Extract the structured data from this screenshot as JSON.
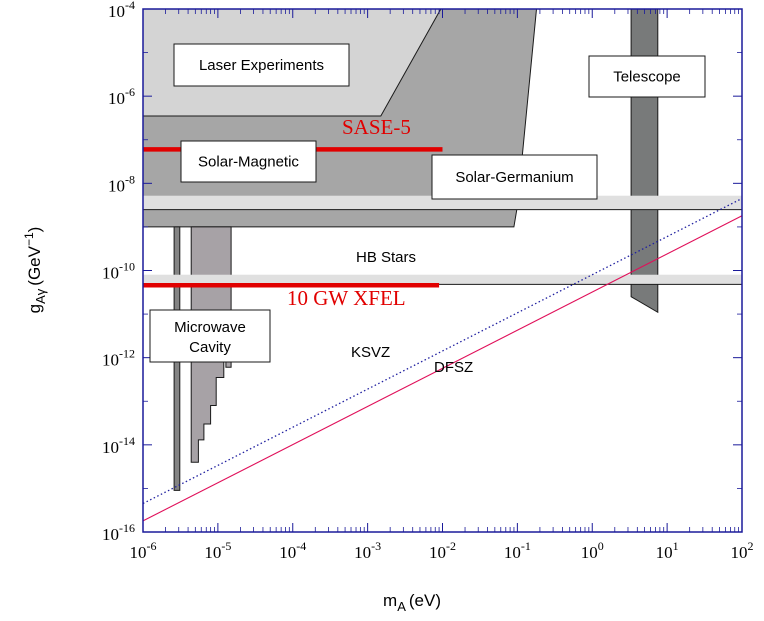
{
  "chart_data": {
    "type": "exclusion-plot",
    "xlabel": "m",
    "xlabel_sub": "A",
    "xlabel_unit": "(eV)",
    "ylabel": "g",
    "ylabel_sub": "Aγ",
    "ylabel_unit": "(GeV",
    "ylabel_unit_exp": "−1",
    "ylabel_unit_close": ")",
    "x_scale": "log",
    "y_scale": "log",
    "xlim": [
      1e-06,
      100
    ],
    "ylim": [
      1e-16,
      0.0001
    ],
    "x_ticks": [
      {
        "value": 1e-06,
        "base": "10",
        "exp": "-6"
      },
      {
        "value": 1e-05,
        "base": "10",
        "exp": "-5"
      },
      {
        "value": 0.0001,
        "base": "10",
        "exp": "-4"
      },
      {
        "value": 0.001,
        "base": "10",
        "exp": "-3"
      },
      {
        "value": 0.01,
        "base": "10",
        "exp": "-2"
      },
      {
        "value": 0.1,
        "base": "10",
        "exp": "-1"
      },
      {
        "value": 1,
        "base": "10",
        "exp": "0"
      },
      {
        "value": 10,
        "base": "10",
        "exp": "1"
      },
      {
        "value": 100,
        "base": "10",
        "exp": "2"
      }
    ],
    "y_ticks": [
      {
        "value": 1e-16,
        "base": "10",
        "exp": "-16"
      },
      {
        "value": 1e-14,
        "base": "10",
        "exp": "-14"
      },
      {
        "value": 1e-12,
        "base": "10",
        "exp": "-12"
      },
      {
        "value": 1e-10,
        "base": "10",
        "exp": "-10"
      },
      {
        "value": 1e-08,
        "base": "10",
        "exp": "-8"
      },
      {
        "value": 1e-06,
        "base": "10",
        "exp": "-6"
      },
      {
        "value": 0.0001,
        "base": "10",
        "exp": "-4"
      }
    ],
    "regions": [
      {
        "name": "Solar-Magnetic",
        "label": "Solar-Magnetic",
        "color": "#a6a6a6",
        "points": [
          [
            1e-06,
            3.5e-07
          ],
          [
            1e-06,
            0.0001
          ],
          [
            0.18,
            0.0001
          ],
          [
            0.1,
            3e-09
          ],
          [
            0.09,
            1e-09
          ],
          [
            1e-06,
            1e-09
          ]
        ]
      },
      {
        "name": "Laser Experiments",
        "label": "Laser Experiments",
        "color": "#d4d4d4",
        "points": [
          [
            1e-06,
            3.5e-07
          ],
          [
            1e-06,
            0.0001
          ],
          [
            0.0095,
            0.0001
          ],
          [
            0.0015,
            3.5e-07
          ]
        ]
      },
      {
        "name": "Telescope",
        "label": "Telescope",
        "color": "#787a7a",
        "points": [
          [
            3.3,
            0.0001
          ],
          [
            7.5,
            0.0001
          ],
          [
            7.5,
            1.1e-11
          ],
          [
            3.3,
            2.5e-11
          ]
        ]
      },
      {
        "name": "Microwave Cavity left",
        "label": "",
        "color": "#848484",
        "points": [
          [
            2.6e-06,
            1e-09
          ],
          [
            3.1e-06,
            1e-09
          ],
          [
            3.1e-06,
            9e-16
          ],
          [
            2.6e-06,
            9e-16
          ]
        ]
      },
      {
        "name": "Microwave Cavity",
        "label": "Microwave Cavity",
        "color": "#a7a2a6",
        "points": [
          [
            4.4e-06,
            1e-09
          ],
          [
            1.5e-05,
            1e-09
          ],
          [
            1.5e-05,
            6e-13
          ],
          [
            1.28e-05,
            6e-13
          ],
          [
            1.28e-05,
            1.8e-12
          ],
          [
            1.2e-05,
            1.8e-12
          ],
          [
            1.2e-05,
            3.5e-13
          ],
          [
            9.5e-06,
            3.5e-13
          ],
          [
            9.5e-06,
            8e-14
          ],
          [
            8e-06,
            8e-14
          ],
          [
            8e-06,
            3e-14
          ],
          [
            6.5e-06,
            3e-14
          ],
          [
            6.5e-06,
            1.3e-14
          ],
          [
            5.5e-06,
            1.3e-14
          ],
          [
            5.5e-06,
            4e-15
          ],
          [
            4.4e-06,
            4e-15
          ]
        ]
      }
    ],
    "bands": [
      {
        "name": "Solar-Germanium",
        "label": "Solar-Germanium",
        "color": "#e0e0e0",
        "y": [
          2.5e-09,
          5.2e-09
        ]
      },
      {
        "name": "HB Stars",
        "label": "HB Stars",
        "color": "#e0e0e0",
        "y": [
          4.8e-11,
          8e-11
        ]
      }
    ],
    "series": [
      {
        "name": "SASE-5",
        "label": "SASE-5",
        "color": "#e10000",
        "x": [
          1e-06,
          0.01
        ],
        "y": [
          6e-08,
          6e-08
        ]
      },
      {
        "name": "10 GW XFEL",
        "label": "10 GW XFEL",
        "color": "#e10000",
        "x": [
          1e-06,
          0.009
        ],
        "y": [
          4.6e-11,
          4.6e-11
        ]
      },
      {
        "name": "KSVZ",
        "label": "KSVZ",
        "color": "#2020a0",
        "style": "dotted",
        "x": [
          1e-06,
          100
        ],
        "y": [
          4.5e-16,
          4.5e-09
        ]
      },
      {
        "name": "DFSZ",
        "label": "DFSZ",
        "color": "#e0105a",
        "style": "solid",
        "x": [
          1e-06,
          100
        ],
        "y": [
          1.8e-16,
          1.8e-09
        ]
      }
    ],
    "grid": false,
    "legend": "none"
  }
}
